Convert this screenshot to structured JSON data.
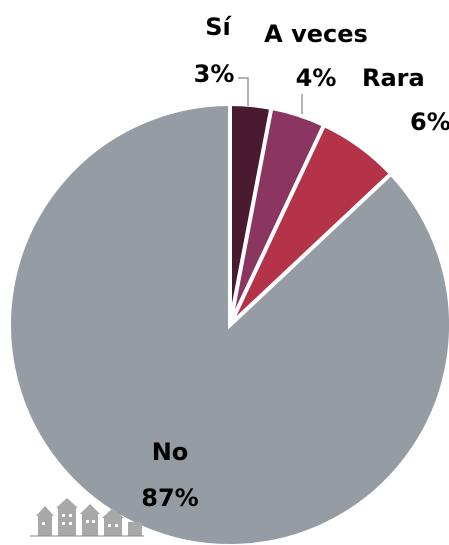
{
  "chart_data": {
    "type": "pie",
    "title": "",
    "categories": [
      "Sí",
      "A veces",
      "Rara",
      "No"
    ],
    "values": [
      3,
      4,
      6,
      87
    ],
    "value_labels": [
      "3%",
      "4%",
      "6%",
      "87%"
    ],
    "colors": [
      "#4a1a30",
      "#8a3660",
      "#b53348",
      "#969ca3"
    ],
    "start_angle_deg": 0,
    "direction": "clockwise",
    "legend": "none"
  }
}
